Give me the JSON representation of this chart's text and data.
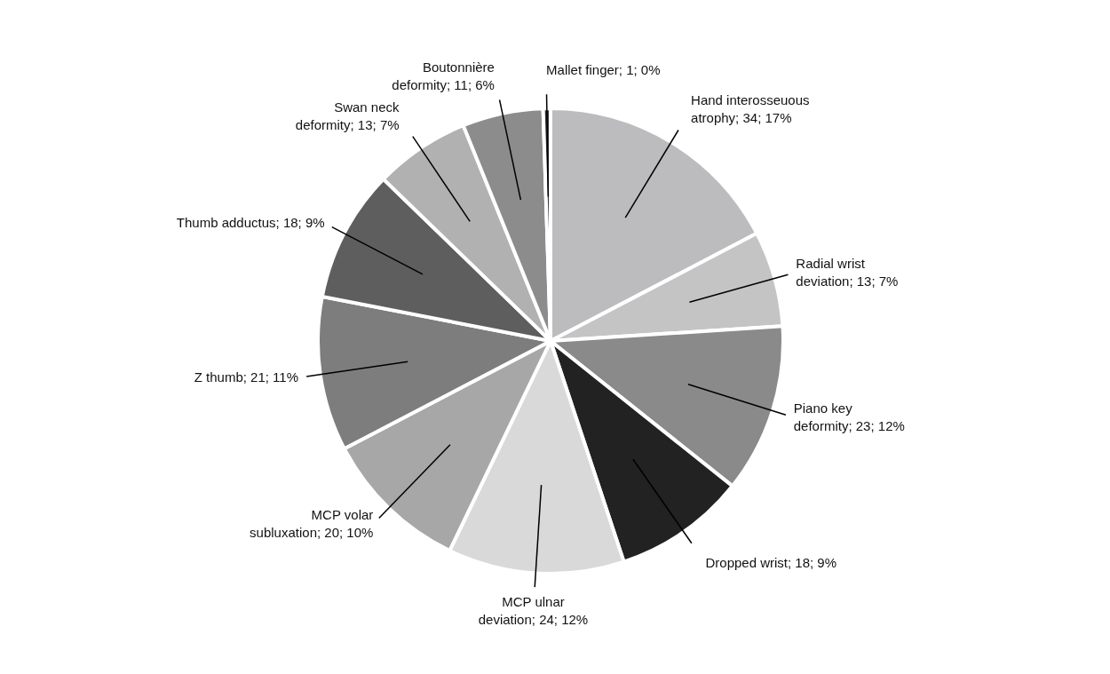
{
  "chart_data": {
    "type": "pie",
    "categories": [
      "Hand interosseuous atrophy",
      "Radial wrist deviation",
      "Piano key deformity",
      "Dropped wrist",
      "MCP ulnar deviation",
      "MCP volar subluxation",
      "Z thumb",
      "Thumb adductus",
      "Swan neck deformity",
      "Boutonnière deformity",
      "Mallet finger"
    ],
    "values": [
      34,
      13,
      23,
      18,
      24,
      20,
      21,
      18,
      13,
      11,
      1
    ],
    "value_labels": [
      "34; 17%",
      "13; 7%",
      "23; 12%",
      "18; 9%",
      "24; 12%",
      "20; 10%",
      "21; 11%",
      "18; 9%",
      "13; 7%",
      "11; 6%",
      "1; 0%"
    ],
    "colors": [
      "#bcbcbe",
      "#c4c4c4",
      "#8a8a8a",
      "#222222",
      "#d9d9d9",
      "#a7a7a7",
      "#7d7d7d",
      "#5e5e5e",
      "#b1b1b1",
      "#8c8c8c",
      "#333333"
    ]
  }
}
